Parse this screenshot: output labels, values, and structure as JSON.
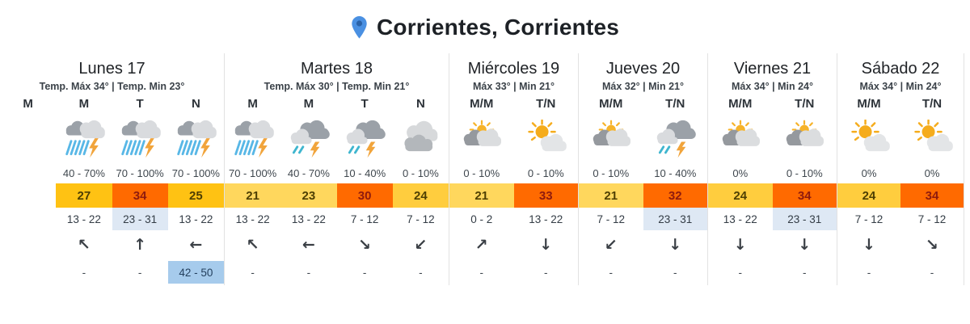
{
  "header": {
    "title": "Corrientes, Corrientes"
  },
  "palette": {
    "pin": "#4A90E2",
    "pin_inner": "#2A62A8",
    "hot_bg": "#FF6A00",
    "hot_text": "#8E1B0E",
    "warm_bg": "#FFC213",
    "warm_text": "#4E3F03",
    "mid_bg": "#FFCD3E",
    "mid_text": "#4E3F03",
    "mild_bg": "#FFD75D",
    "mild_text": "#4E3F03",
    "wind_hl_bg": "#DEE8F4",
    "gust_hl_bg": "#A6CBEC",
    "gust_hl_text": "#24405E"
  },
  "days": [
    {
      "name": "Lunes 17",
      "minmax": "Temp. Máx 34° | Temp. Min 23°",
      "cols": [
        {
          "header": "M",
          "empty": true
        },
        {
          "header": "M",
          "icon": "storm",
          "pct": "40 - 70%",
          "temp": "27",
          "level": "warm",
          "wind": "13 - 22",
          "wind_hl": false,
          "arrow": "↖",
          "arrow_dir": "northwest",
          "gust": "-",
          "gust_hl": false
        },
        {
          "header": "T",
          "icon": "storm",
          "pct": "70 - 100%",
          "temp": "34",
          "level": "hot",
          "wind": "23 - 31",
          "wind_hl": true,
          "arrow": "↑",
          "arrow_dir": "north",
          "gust": "-",
          "gust_hl": false
        },
        {
          "header": "N",
          "icon": "storm",
          "pct": "70 - 100%",
          "temp": "25",
          "level": "warm",
          "wind": "13 - 22",
          "wind_hl": false,
          "arrow": "←",
          "arrow_dir": "west",
          "gust": "42 - 50",
          "gust_hl": true
        }
      ]
    },
    {
      "name": "Martes 18",
      "minmax": "Temp. Máx 30° | Temp. Min 21°",
      "cols": [
        {
          "header": "M",
          "icon": "storm",
          "pct": "70 - 100%",
          "temp": "21",
          "level": "mild",
          "wind": "13 - 22",
          "wind_hl": false,
          "arrow": "↖",
          "arrow_dir": "northwest",
          "gust": "-",
          "gust_hl": false
        },
        {
          "header": "M",
          "icon": "rainbolt",
          "pct": "40 - 70%",
          "temp": "23",
          "level": "mild",
          "wind": "13 - 22",
          "wind_hl": false,
          "arrow": "←",
          "arrow_dir": "west",
          "gust": "-",
          "gust_hl": false
        },
        {
          "header": "T",
          "icon": "rainbolt",
          "pct": "10 - 40%",
          "temp": "30",
          "level": "hot",
          "wind": "7 - 12",
          "wind_hl": false,
          "arrow": "↘",
          "arrow_dir": "southeast",
          "gust": "-",
          "gust_hl": false
        },
        {
          "header": "N",
          "icon": "cloudy",
          "pct": "0 - 10%",
          "temp": "24",
          "level": "mid",
          "wind": "7 - 12",
          "wind_hl": false,
          "arrow": "↙",
          "arrow_dir": "southwest",
          "gust": "-",
          "gust_hl": false
        }
      ]
    },
    {
      "name": "Miércoles 19",
      "minmax": "Máx 33° | Min 21°",
      "cols": [
        {
          "header": "M/M",
          "icon": "cloudsun",
          "pct": "0 - 10%",
          "temp": "21",
          "level": "mild",
          "wind": "0 - 2",
          "wind_hl": false,
          "arrow": "↗",
          "arrow_dir": "northeast",
          "gust": "-",
          "gust_hl": false
        },
        {
          "header": "T/N",
          "icon": "suncloud",
          "pct": "0 - 10%",
          "temp": "33",
          "level": "hot",
          "wind": "13 - 22",
          "wind_hl": false,
          "arrow": "↓",
          "arrow_dir": "south",
          "gust": "-",
          "gust_hl": false
        }
      ]
    },
    {
      "name": "Jueves 20",
      "minmax": "Máx 32° | Min 21°",
      "cols": [
        {
          "header": "M/M",
          "icon": "cloudsun",
          "pct": "0 - 10%",
          "temp": "21",
          "level": "mild",
          "wind": "7 - 12",
          "wind_hl": false,
          "arrow": "↙",
          "arrow_dir": "southwest",
          "gust": "-",
          "gust_hl": false
        },
        {
          "header": "T/N",
          "icon": "rainbolt",
          "pct": "10 - 40%",
          "temp": "32",
          "level": "hot",
          "wind": "23 - 31",
          "wind_hl": true,
          "arrow": "↓",
          "arrow_dir": "south",
          "gust": "-",
          "gust_hl": false
        }
      ]
    },
    {
      "name": "Viernes 21",
      "minmax": "Máx 34° | Min 24°",
      "cols": [
        {
          "header": "M/M",
          "icon": "cloudsun",
          "pct": "0%",
          "temp": "24",
          "level": "mid",
          "wind": "13 - 22",
          "wind_hl": false,
          "arrow": "↓",
          "arrow_dir": "south",
          "gust": "-",
          "gust_hl": false
        },
        {
          "header": "T/N",
          "icon": "cloudsun",
          "pct": "0 - 10%",
          "temp": "34",
          "level": "hot",
          "wind": "23 - 31",
          "wind_hl": true,
          "arrow": "↓",
          "arrow_dir": "south",
          "gust": "-",
          "gust_hl": false
        }
      ]
    },
    {
      "name": "Sábado 22",
      "minmax": "Máx 34° | Min 24°",
      "cols": [
        {
          "header": "M/M",
          "icon": "suncloud",
          "pct": "0%",
          "temp": "24",
          "level": "mid",
          "wind": "7 - 12",
          "wind_hl": false,
          "arrow": "↓",
          "arrow_dir": "south",
          "gust": "-",
          "gust_hl": false
        },
        {
          "header": "T/N",
          "icon": "suncloud",
          "pct": "0%",
          "temp": "34",
          "level": "hot",
          "wind": "7 - 12",
          "wind_hl": false,
          "arrow": "↘",
          "arrow_dir": "southeast",
          "gust": "-",
          "gust_hl": false
        }
      ]
    }
  ]
}
